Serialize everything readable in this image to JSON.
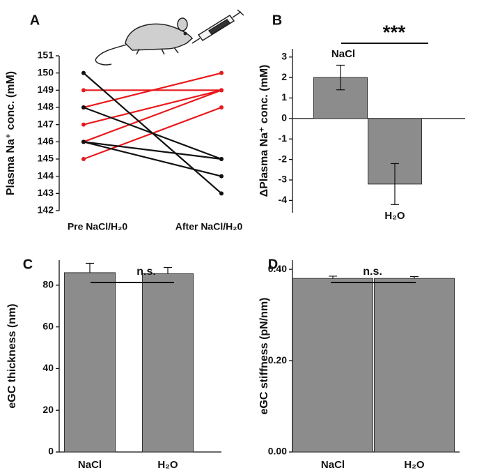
{
  "chart_data": [
    {
      "type": "line",
      "title": "A",
      "ylabel": "Plasma Na⁺ conc. (mM)",
      "categories": [
        "Pre NaCl/H₂0",
        "After NaCl/H₂0"
      ],
      "ylim": [
        142,
        151
      ],
      "yticks": [
        142,
        143,
        144,
        145,
        146,
        147,
        148,
        149,
        150,
        151
      ],
      "series": [
        {
          "color": "#e8191c",
          "values": [
            149,
            149
          ]
        },
        {
          "color": "#e8191c",
          "values": [
            148,
            150
          ]
        },
        {
          "color": "#e8191c",
          "values": [
            147,
            149
          ]
        },
        {
          "color": "#e8191c",
          "values": [
            146,
            149
          ]
        },
        {
          "color": "#e8191c",
          "values": [
            145,
            148
          ]
        },
        {
          "color": "#111111",
          "values": [
            150,
            143
          ]
        },
        {
          "color": "#111111",
          "values": [
            148,
            145
          ]
        },
        {
          "color": "#111111",
          "values": [
            146,
            145
          ]
        },
        {
          "color": "#111111",
          "values": [
            146,
            144
          ]
        }
      ]
    },
    {
      "type": "bar",
      "title": "B",
      "ylabel": "ΔPlasma Na⁺ conc. (mM)",
      "annotation": "***",
      "categories": [
        "NaCl",
        "H₂O"
      ],
      "values": [
        2,
        -3.2
      ],
      "errors": [
        0.6,
        1.0
      ],
      "color": "#8c8c8c",
      "ylim": [
        -4.6,
        3.4
      ],
      "yticks": [
        -4,
        -3,
        -2,
        -1,
        0,
        1,
        2,
        3
      ]
    },
    {
      "type": "bar",
      "title": "C",
      "ylabel": "eGC thickness (nm)",
      "annotation": "n.s.",
      "categories": [
        "NaCl",
        "H₂O"
      ],
      "values": [
        86,
        85.5
      ],
      "errors": [
        4.5,
        3
      ],
      "color": "#8c8c8c",
      "ylim": [
        0,
        92
      ],
      "yticks": [
        0,
        20,
        40,
        60,
        80
      ]
    },
    {
      "type": "bar",
      "title": "D",
      "ylabel": "eGC stiffness (pN/nm)",
      "annotation": "n.s.",
      "categories": [
        "NaCl",
        "H₂O"
      ],
      "values": [
        0.38,
        0.38
      ],
      "errors": [
        0.005,
        0.004
      ],
      "color": "#8c8c8c",
      "ylim": [
        0,
        0.42
      ],
      "yticks": [
        {
          "value": 0,
          "label": "0.00"
        },
        {
          "value": 0.2,
          "label": "0.20"
        },
        {
          "value": 0.4,
          "label": "0.40"
        }
      ]
    }
  ]
}
